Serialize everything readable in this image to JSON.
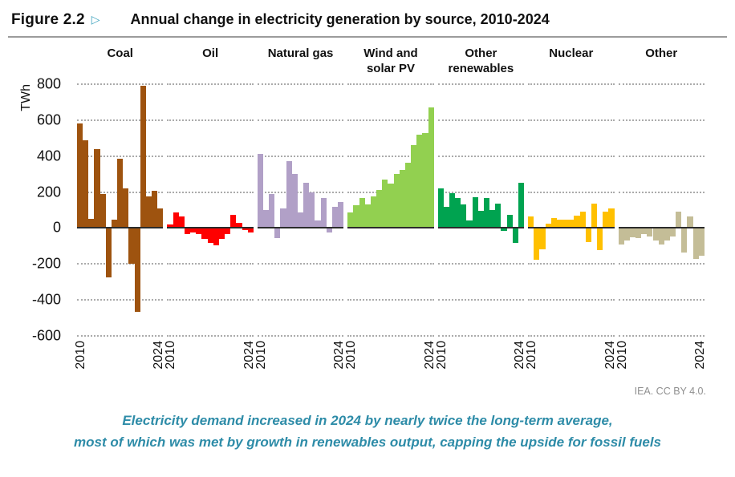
{
  "header": {
    "figure_label": "Figure 2.2",
    "arrow_icon": "▷",
    "title": "Annual change in electricity generation by source, 2010-2024"
  },
  "colors": {
    "accent_teal": "#3fa3be",
    "caption_teal": "#2e8ca8",
    "attribution_gray": "#8f8f8f",
    "gridline_gray": "#ababab",
    "axis_dark": "#2b2b2b"
  },
  "chart_data": {
    "type": "bar",
    "title": "Annual change in electricity generation by source, 2010-2024",
    "ylabel": "TWh",
    "ylim": [
      -600,
      800
    ],
    "y_ticks": [
      800,
      600,
      400,
      200,
      0,
      -200,
      -400,
      -600
    ],
    "grid": "horizontal dotted, solid line at zero",
    "legend_position": "none (panel titles above each facet)",
    "x": [
      "2010",
      "2011",
      "2012",
      "2013",
      "2014",
      "2015",
      "2016",
      "2017",
      "2018",
      "2019",
      "2020",
      "2021",
      "2022",
      "2023",
      "2024"
    ],
    "x_tick_labels": [
      "2010",
      "2024"
    ],
    "series": [
      {
        "name": "Coal",
        "label_lines": [
          "Coal"
        ],
        "color": "#9e530f",
        "values": [
          580,
          490,
          50,
          440,
          190,
          -275,
          45,
          385,
          220,
          -200,
          -465,
          790,
          175,
          205,
          110
        ]
      },
      {
        "name": "Oil",
        "label_lines": [
          "Oil"
        ],
        "color": "#fe0000",
        "values": [
          20,
          85,
          65,
          -35,
          -25,
          -35,
          -60,
          -85,
          -95,
          -60,
          -35,
          75,
          30,
          -10,
          -25
        ]
      },
      {
        "name": "Natural gas",
        "label_lines": [
          "Natural gas"
        ],
        "color": "#b1a0c7",
        "values": [
          410,
          100,
          190,
          -55,
          110,
          370,
          300,
          85,
          250,
          200,
          40,
          165,
          -25,
          120,
          145
        ]
      },
      {
        "name": "Wind and solar PV",
        "label_lines": [
          "Wind and",
          "solar PV"
        ],
        "color": "#92d050",
        "values": [
          85,
          125,
          165,
          130,
          175,
          210,
          270,
          245,
          300,
          325,
          365,
          460,
          520,
          530,
          670
        ]
      },
      {
        "name": "Other renewables",
        "label_lines": [
          "Other",
          "renewables"
        ],
        "color": "#00a350",
        "values": [
          220,
          120,
          195,
          165,
          130,
          40,
          170,
          95,
          165,
          100,
          135,
          -15,
          75,
          -85,
          250
        ]
      },
      {
        "name": "Nuclear",
        "label_lines": [
          "Nuclear"
        ],
        "color": "#ffc000",
        "values": [
          65,
          -175,
          -120,
          25,
          55,
          45,
          45,
          45,
          70,
          90,
          -80,
          135,
          -125,
          90,
          110
        ]
      },
      {
        "name": "Other",
        "label_lines": [
          "Other"
        ],
        "color": "#c4bd97",
        "values": [
          -90,
          -70,
          -50,
          -55,
          -35,
          -45,
          -70,
          -90,
          -70,
          -45,
          90,
          -135,
          65,
          -170,
          -155
        ]
      }
    ]
  },
  "footer": {
    "attribution": "IEA. CC BY 4.0."
  },
  "caption": {
    "line1": "Electricity demand increased in 2024 by nearly twice the long-term average,",
    "line2": "most of which was met by growth in renewables output, capping the upside for fossil fuels"
  }
}
